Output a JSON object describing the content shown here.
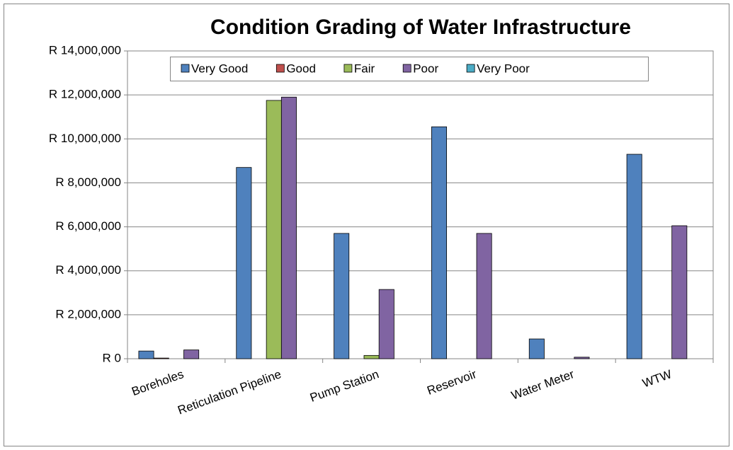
{
  "chart_data": {
    "type": "bar",
    "title": "Condition Grading of Water Infrastructure",
    "categories": [
      "Boreholes",
      "Reticulation Pipeline",
      "Pump Station",
      "Reservoir",
      "Water Meter",
      "WTW"
    ],
    "series": [
      {
        "name": "Very Good",
        "color": "#4f81bd",
        "values": [
          350000,
          8700000,
          5700000,
          10550000,
          900000,
          9300000
        ]
      },
      {
        "name": "Good",
        "color": "#c0504d",
        "values": [
          30000,
          0,
          0,
          0,
          0,
          0
        ]
      },
      {
        "name": "Fair",
        "color": "#9bbb59",
        "values": [
          0,
          11750000,
          150000,
          0,
          0,
          0
        ]
      },
      {
        "name": "Poor",
        "color": "#8064a2",
        "values": [
          400000,
          11900000,
          3150000,
          5700000,
          70000,
          6050000
        ]
      },
      {
        "name": "Very Poor",
        "color": "#4bacc6",
        "values": [
          0,
          0,
          0,
          0,
          0,
          0
        ]
      }
    ],
    "ylim": [
      0,
      14000000
    ],
    "yticks": [
      {
        "value": 0,
        "label": "R 0"
      },
      {
        "value": 2000000,
        "label": "R 2,000,000"
      },
      {
        "value": 4000000,
        "label": "R 4,000,000"
      },
      {
        "value": 6000000,
        "label": "R 6,000,000"
      },
      {
        "value": 8000000,
        "label": "R 8,000,000"
      },
      {
        "value": 10000000,
        "label": "R 10,000,000"
      },
      {
        "value": 12000000,
        "label": "R 12,000,000"
      },
      {
        "value": 14000000,
        "label": "R 14,000,000"
      }
    ],
    "grid": true,
    "legend": "top"
  }
}
